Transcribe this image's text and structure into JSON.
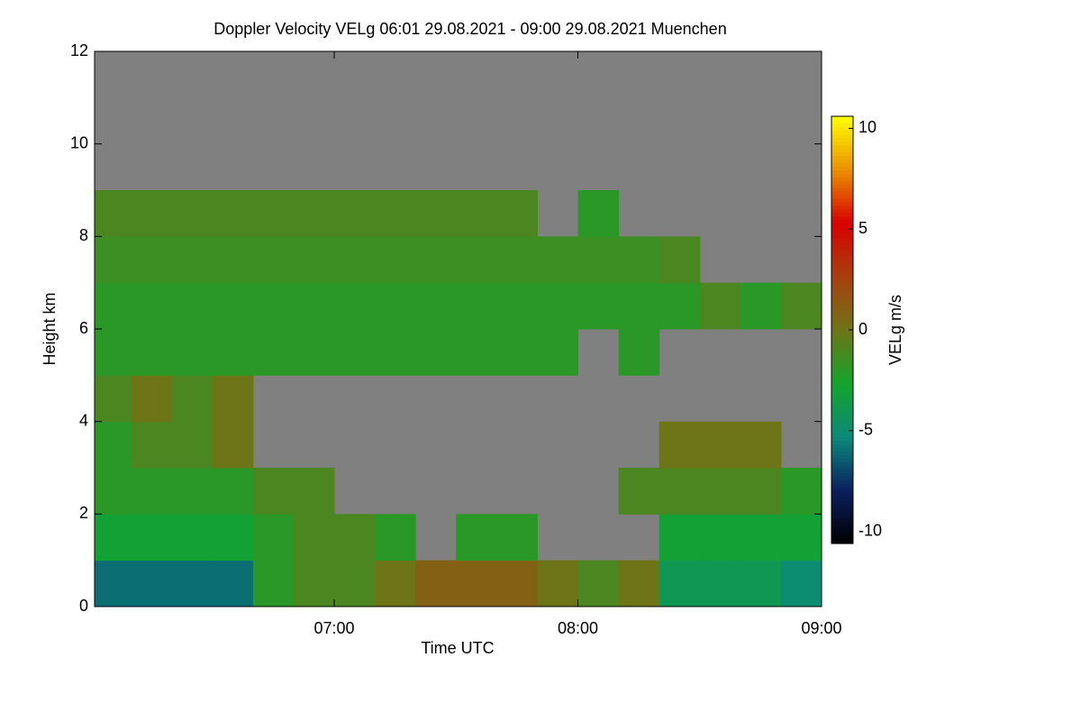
{
  "chart_data": {
    "type": "heatmap",
    "title": "Doppler Velocity VELg   06:01 29.08.2021 - 09:00 29.08.2021 Muenchen",
    "xlabel": "Time UTC",
    "ylabel": "Height km",
    "zlabel": "VELg m/s",
    "xlim": [
      361,
      540
    ],
    "xticks": [
      {
        "value": 420,
        "label": "07:00"
      },
      {
        "value": 480,
        "label": "08:00"
      },
      {
        "value": 540,
        "label": "09:00"
      }
    ],
    "ylim": [
      0,
      12
    ],
    "yticks": [
      0,
      2,
      4,
      6,
      8,
      10,
      12
    ],
    "zlim": [
      -10.6,
      10.6
    ],
    "zticks": [
      -10,
      -5,
      0,
      5,
      10
    ],
    "colorscale": [
      "#000000",
      "#0b1f5e",
      "#0b8a7a",
      "#14a42c",
      "#6e7418",
      "#a8400e",
      "#d80000",
      "#ea9000",
      "#ffff00"
    ],
    "missing_color": "#808080",
    "x": [
      365,
      375,
      385,
      395,
      405,
      415,
      425,
      435,
      445,
      455,
      465,
      475,
      485,
      495,
      505,
      515,
      525,
      535
    ],
    "y": [
      0.5,
      1.5,
      2.5,
      3.5,
      4.5,
      5.5,
      6.5,
      7.5,
      8.5,
      9.5,
      10.5,
      11.5
    ],
    "z": [
      [
        -6,
        -6,
        -6,
        -6,
        -2,
        -1,
        -1,
        0,
        1,
        1,
        1,
        0,
        -1,
        0,
        -4,
        -4,
        -4,
        -5
      ],
      [
        -3,
        -3,
        -3,
        -3,
        -2,
        -1,
        -1,
        -2,
        null,
        -2,
        -2,
        null,
        null,
        null,
        -3,
        -3,
        -3,
        -3
      ],
      [
        -2,
        -2,
        -2,
        -2,
        -1,
        -1,
        null,
        null,
        null,
        null,
        null,
        null,
        null,
        -1,
        -1,
        -1,
        -1,
        -2
      ],
      [
        -2,
        -1,
        -1,
        0,
        null,
        null,
        null,
        null,
        null,
        null,
        null,
        null,
        null,
        null,
        0,
        0,
        0,
        null
      ],
      [
        -1,
        0,
        -1,
        0,
        null,
        null,
        null,
        null,
        null,
        null,
        null,
        null,
        null,
        null,
        null,
        null,
        null,
        null
      ],
      [
        -2,
        -2,
        -2,
        -2,
        -2,
        -2,
        -2,
        -2,
        -2,
        -2,
        -2,
        -2,
        null,
        -2,
        null,
        null,
        null,
        null
      ],
      [
        -2,
        -2,
        -2,
        -2,
        -2,
        -2,
        -2,
        -2,
        -2,
        -2,
        -2,
        -2,
        -2,
        -2,
        -2,
        -1,
        -2,
        -1
      ],
      [
        -1.5,
        -1.5,
        -1.5,
        -1.5,
        -1.5,
        -1.5,
        -1.5,
        -1.5,
        -1.5,
        -1.5,
        -1.5,
        -1.5,
        -1.5,
        -1.5,
        -1,
        null,
        null,
        null
      ],
      [
        -1,
        -1,
        -1,
        -1,
        -1,
        -1,
        -1,
        -1,
        -1,
        -1,
        -1,
        null,
        -2,
        null,
        null,
        null,
        null,
        null
      ],
      [
        null,
        null,
        null,
        null,
        null,
        null,
        null,
        null,
        null,
        null,
        null,
        null,
        null,
        null,
        null,
        null,
        null,
        null
      ],
      [
        null,
        null,
        null,
        null,
        null,
        null,
        null,
        null,
        null,
        null,
        null,
        null,
        null,
        null,
        null,
        null,
        null,
        null
      ],
      [
        null,
        null,
        null,
        null,
        null,
        null,
        null,
        null,
        null,
        null,
        null,
        null,
        null,
        null,
        null,
        null,
        null,
        null
      ]
    ]
  }
}
